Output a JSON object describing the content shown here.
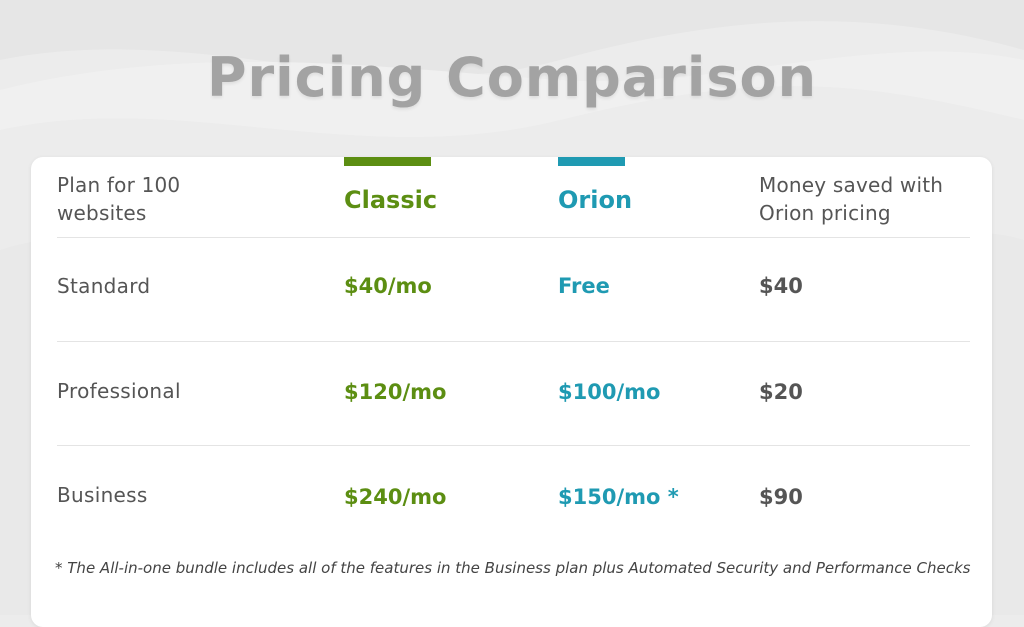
{
  "title": "Pricing Comparison",
  "header": {
    "plan_line1": "Plan for 100",
    "plan_line2": "websites",
    "classic": "Classic",
    "orion": "Orion",
    "saved_line1": "Money saved with",
    "saved_line2": "Orion pricing"
  },
  "rows": [
    {
      "plan": "Standard",
      "classic": "$40/mo",
      "orion": "Free",
      "saved": "$40"
    },
    {
      "plan": "Professional",
      "classic": "$120/mo",
      "orion": "$100/mo",
      "saved": "$20"
    },
    {
      "plan": "Business",
      "classic": "$240/mo",
      "orion": "$150/mo *",
      "saved": "$90"
    }
  ],
  "footnote": "* The All-in-one bundle includes all of the features in the Business plan plus Automated Security and Performance Checks",
  "colors": {
    "classic": "#5c8e12",
    "orion": "#1f9ab2",
    "text": "#555555",
    "title": "#a3a3a3",
    "background": "#ececec"
  }
}
